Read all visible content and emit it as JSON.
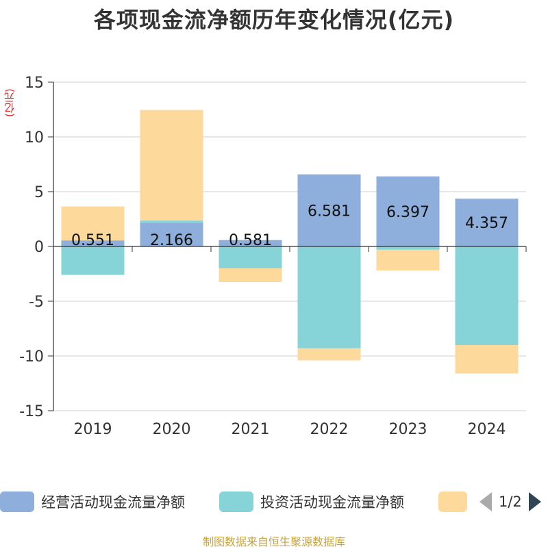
{
  "chart_data": {
    "type": "bar",
    "stacked": true,
    "title": "各项现金流净额历年变化情况(亿元)",
    "ylabel": "(亿元)",
    "ylim": [
      -15,
      15
    ],
    "yticks": [
      15,
      10,
      5,
      0,
      -5,
      -10,
      -15
    ],
    "categories": [
      "2019",
      "2020",
      "2021",
      "2022",
      "2023",
      "2024"
    ],
    "series": [
      {
        "name": "经营活动现金流量净额",
        "color": "#8eaedb",
        "values": [
          0.551,
          2.166,
          0.581,
          6.581,
          6.397,
          4.357
        ],
        "labels": [
          "0.551",
          "2.166",
          "0.581",
          "6.581",
          "6.397",
          "4.357"
        ]
      },
      {
        "name": "投资活动现金流量净额",
        "color": "#86d4d8",
        "values": [
          -2.6,
          0.2,
          -2.0,
          -9.3,
          -0.3,
          -9.0
        ]
      },
      {
        "name": "",
        "color": "#fdd99b",
        "values": [
          3.1,
          10.1,
          -1.25,
          -1.1,
          -1.9,
          -2.6
        ]
      }
    ],
    "legend": {
      "placement": "bottom",
      "page": "1/2"
    }
  },
  "source_note": "制图数据来自恒生聚源数据库"
}
